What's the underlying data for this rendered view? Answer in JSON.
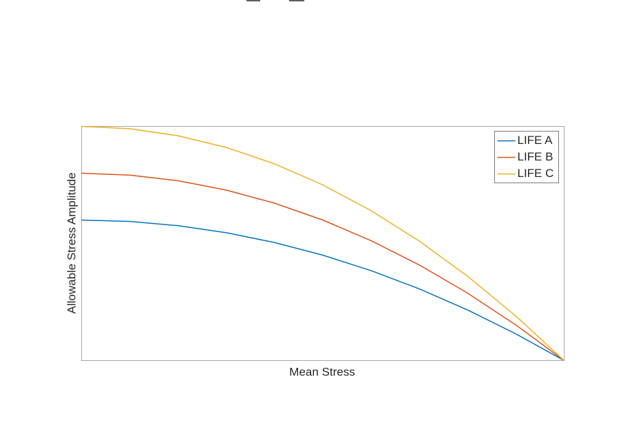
{
  "chart_data": {
    "type": "line",
    "x_label": "Mean Stress",
    "y_label": "Allowable Stress Amplitude",
    "x": [
      0,
      0.1,
      0.2,
      0.3,
      0.4,
      0.5,
      0.6,
      0.7,
      0.8,
      0.9,
      1
    ],
    "series": [
      {
        "name": "LIFE A",
        "color": "#0072bd",
        "values": [
          0.6,
          0.594,
          0.576,
          0.546,
          0.504,
          0.45,
          0.384,
          0.306,
          0.216,
          0.114,
          0
        ]
      },
      {
        "name": "LIFE B",
        "color": "#d95319",
        "values": [
          0.8,
          0.792,
          0.768,
          0.728,
          0.672,
          0.6,
          0.512,
          0.408,
          0.288,
          0.152,
          0
        ]
      },
      {
        "name": "LIFE C",
        "color": "#edb120",
        "values": [
          1,
          0.99,
          0.96,
          0.91,
          0.84,
          0.75,
          0.64,
          0.51,
          0.36,
          0.19,
          0
        ]
      }
    ],
    "xlim": [
      0,
      1
    ],
    "ylim": [
      0,
      1
    ],
    "legend": "upper right"
  }
}
